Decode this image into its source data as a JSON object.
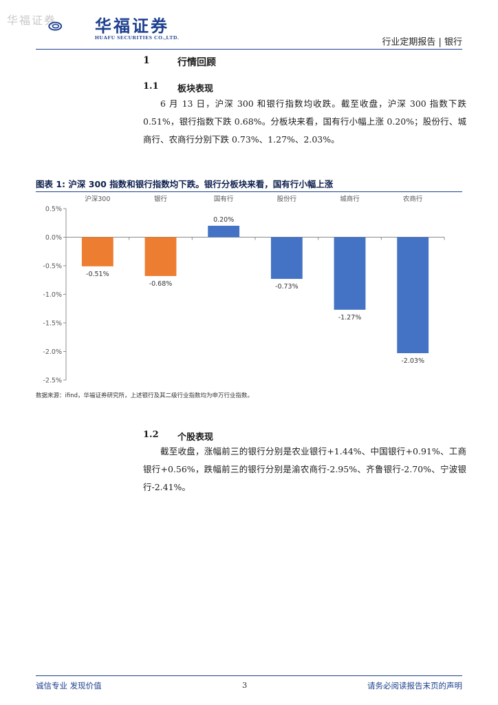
{
  "header": {
    "watermark": "华福证券",
    "logo_cn": "华福证券",
    "logo_en": "HUAFU SECURITIES CO.,LTD.",
    "report_type": "行业定期报告",
    "industry": "银行"
  },
  "section1": {
    "number": "1",
    "title": "行情回顾"
  },
  "section1_1": {
    "number": "1.1",
    "title": "板块表现",
    "body": "6 月 13 日，沪深 300 和银行指数均收跌。截至收盘，沪深 300 指数下跌 0.51%，银行指数下跌 0.68%。分板块来看，国有行小幅上涨 0.20%；股份行、城商行、农商行分别下跌 0.73%、1.27%、2.03%。"
  },
  "figure": {
    "title": "图表 1:  沪深 300 指数和银行指数均下跌。银行分板块来看，国有行小幅上涨",
    "source": "数据来源：ifind，华福证券研究所，上述银行及其二级行业指数均为申万行业指数。"
  },
  "chart_data": {
    "type": "bar",
    "title": "",
    "xlabel": "",
    "ylabel": "",
    "categories": [
      "沪深300",
      "银行",
      "国有行",
      "股份行",
      "城商行",
      "农商行"
    ],
    "values": [
      -0.51,
      -0.68,
      0.2,
      -0.73,
      -1.27,
      -2.03
    ],
    "value_labels": [
      "-0.51%",
      "-0.68%",
      "0.20%",
      "-0.73%",
      "-1.27%",
      "-2.03%"
    ],
    "colors": [
      "#ED7D31",
      "#ED7D31",
      "#4472C4",
      "#4472C4",
      "#4472C4",
      "#4472C4"
    ],
    "ylim": [
      -2.5,
      0.5
    ],
    "yticks": [
      0.5,
      0.0,
      -0.5,
      -1.0,
      -1.5,
      -2.0,
      -2.5
    ],
    "ytick_labels": [
      "0.5%",
      "0.0%",
      "-0.5%",
      "-1.0%",
      "-1.5%",
      "-2.0%",
      "-2.5%"
    ],
    "category_position": "top",
    "grid": false,
    "legend": "none"
  },
  "section1_2": {
    "number": "1.2",
    "title": "个股表现",
    "body": "截至收盘，涨幅前三的银行分别是农业银行+1.44%、中国银行+0.91%、工商银行+0.56%，跌幅前三的银行分别是渝农商行-2.95%、齐鲁银行-2.70%、宁波银行-2.41%。"
  },
  "footer": {
    "left": "诚信专业  发现价值",
    "page": "3",
    "right": "请务必阅读报告末页的声明"
  }
}
